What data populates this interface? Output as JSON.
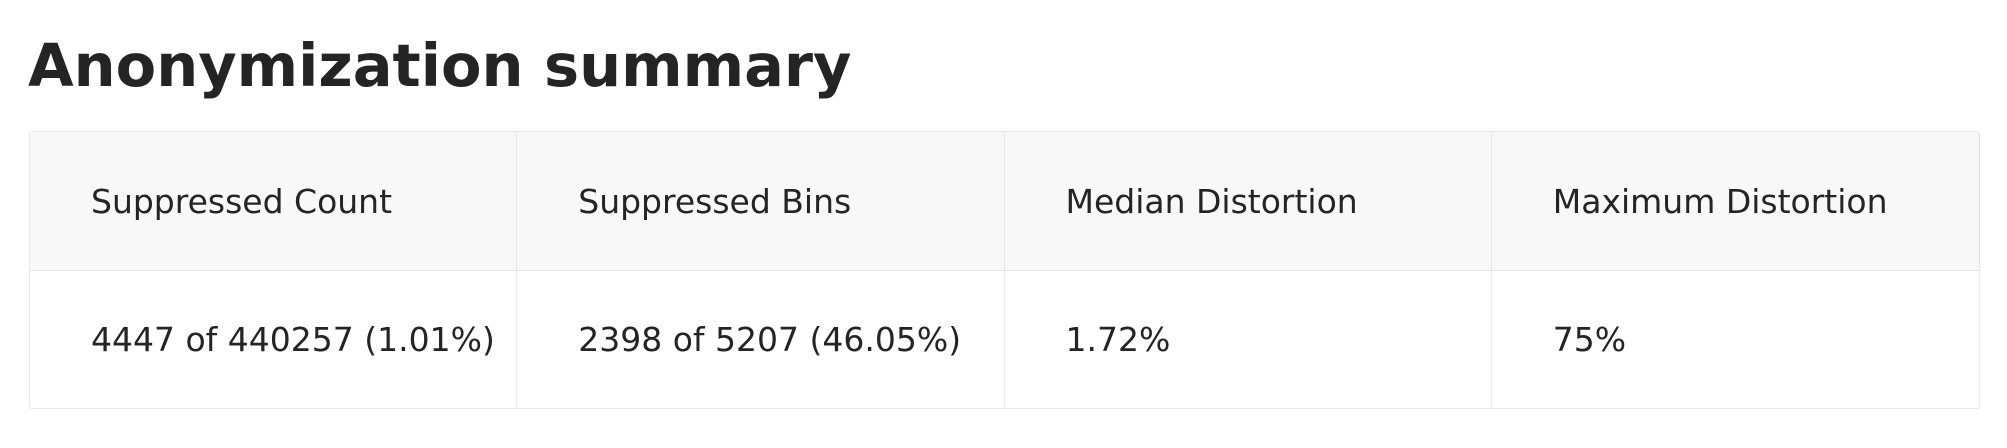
{
  "title": "Anonymization summary",
  "table": {
    "columns": [
      "Suppressed Count",
      "Suppressed Bins",
      "Median Distortion",
      "Maximum Distortion"
    ],
    "rows": [
      [
        "4447 of 440257 (1.01%)",
        "2398 of 5207 (46.05%)",
        "1.72%",
        "75%"
      ]
    ]
  },
  "colors": {
    "text": "#242424",
    "header_background": "#f8f8f8",
    "border": "#e6e6e6",
    "background": "#ffffff"
  }
}
